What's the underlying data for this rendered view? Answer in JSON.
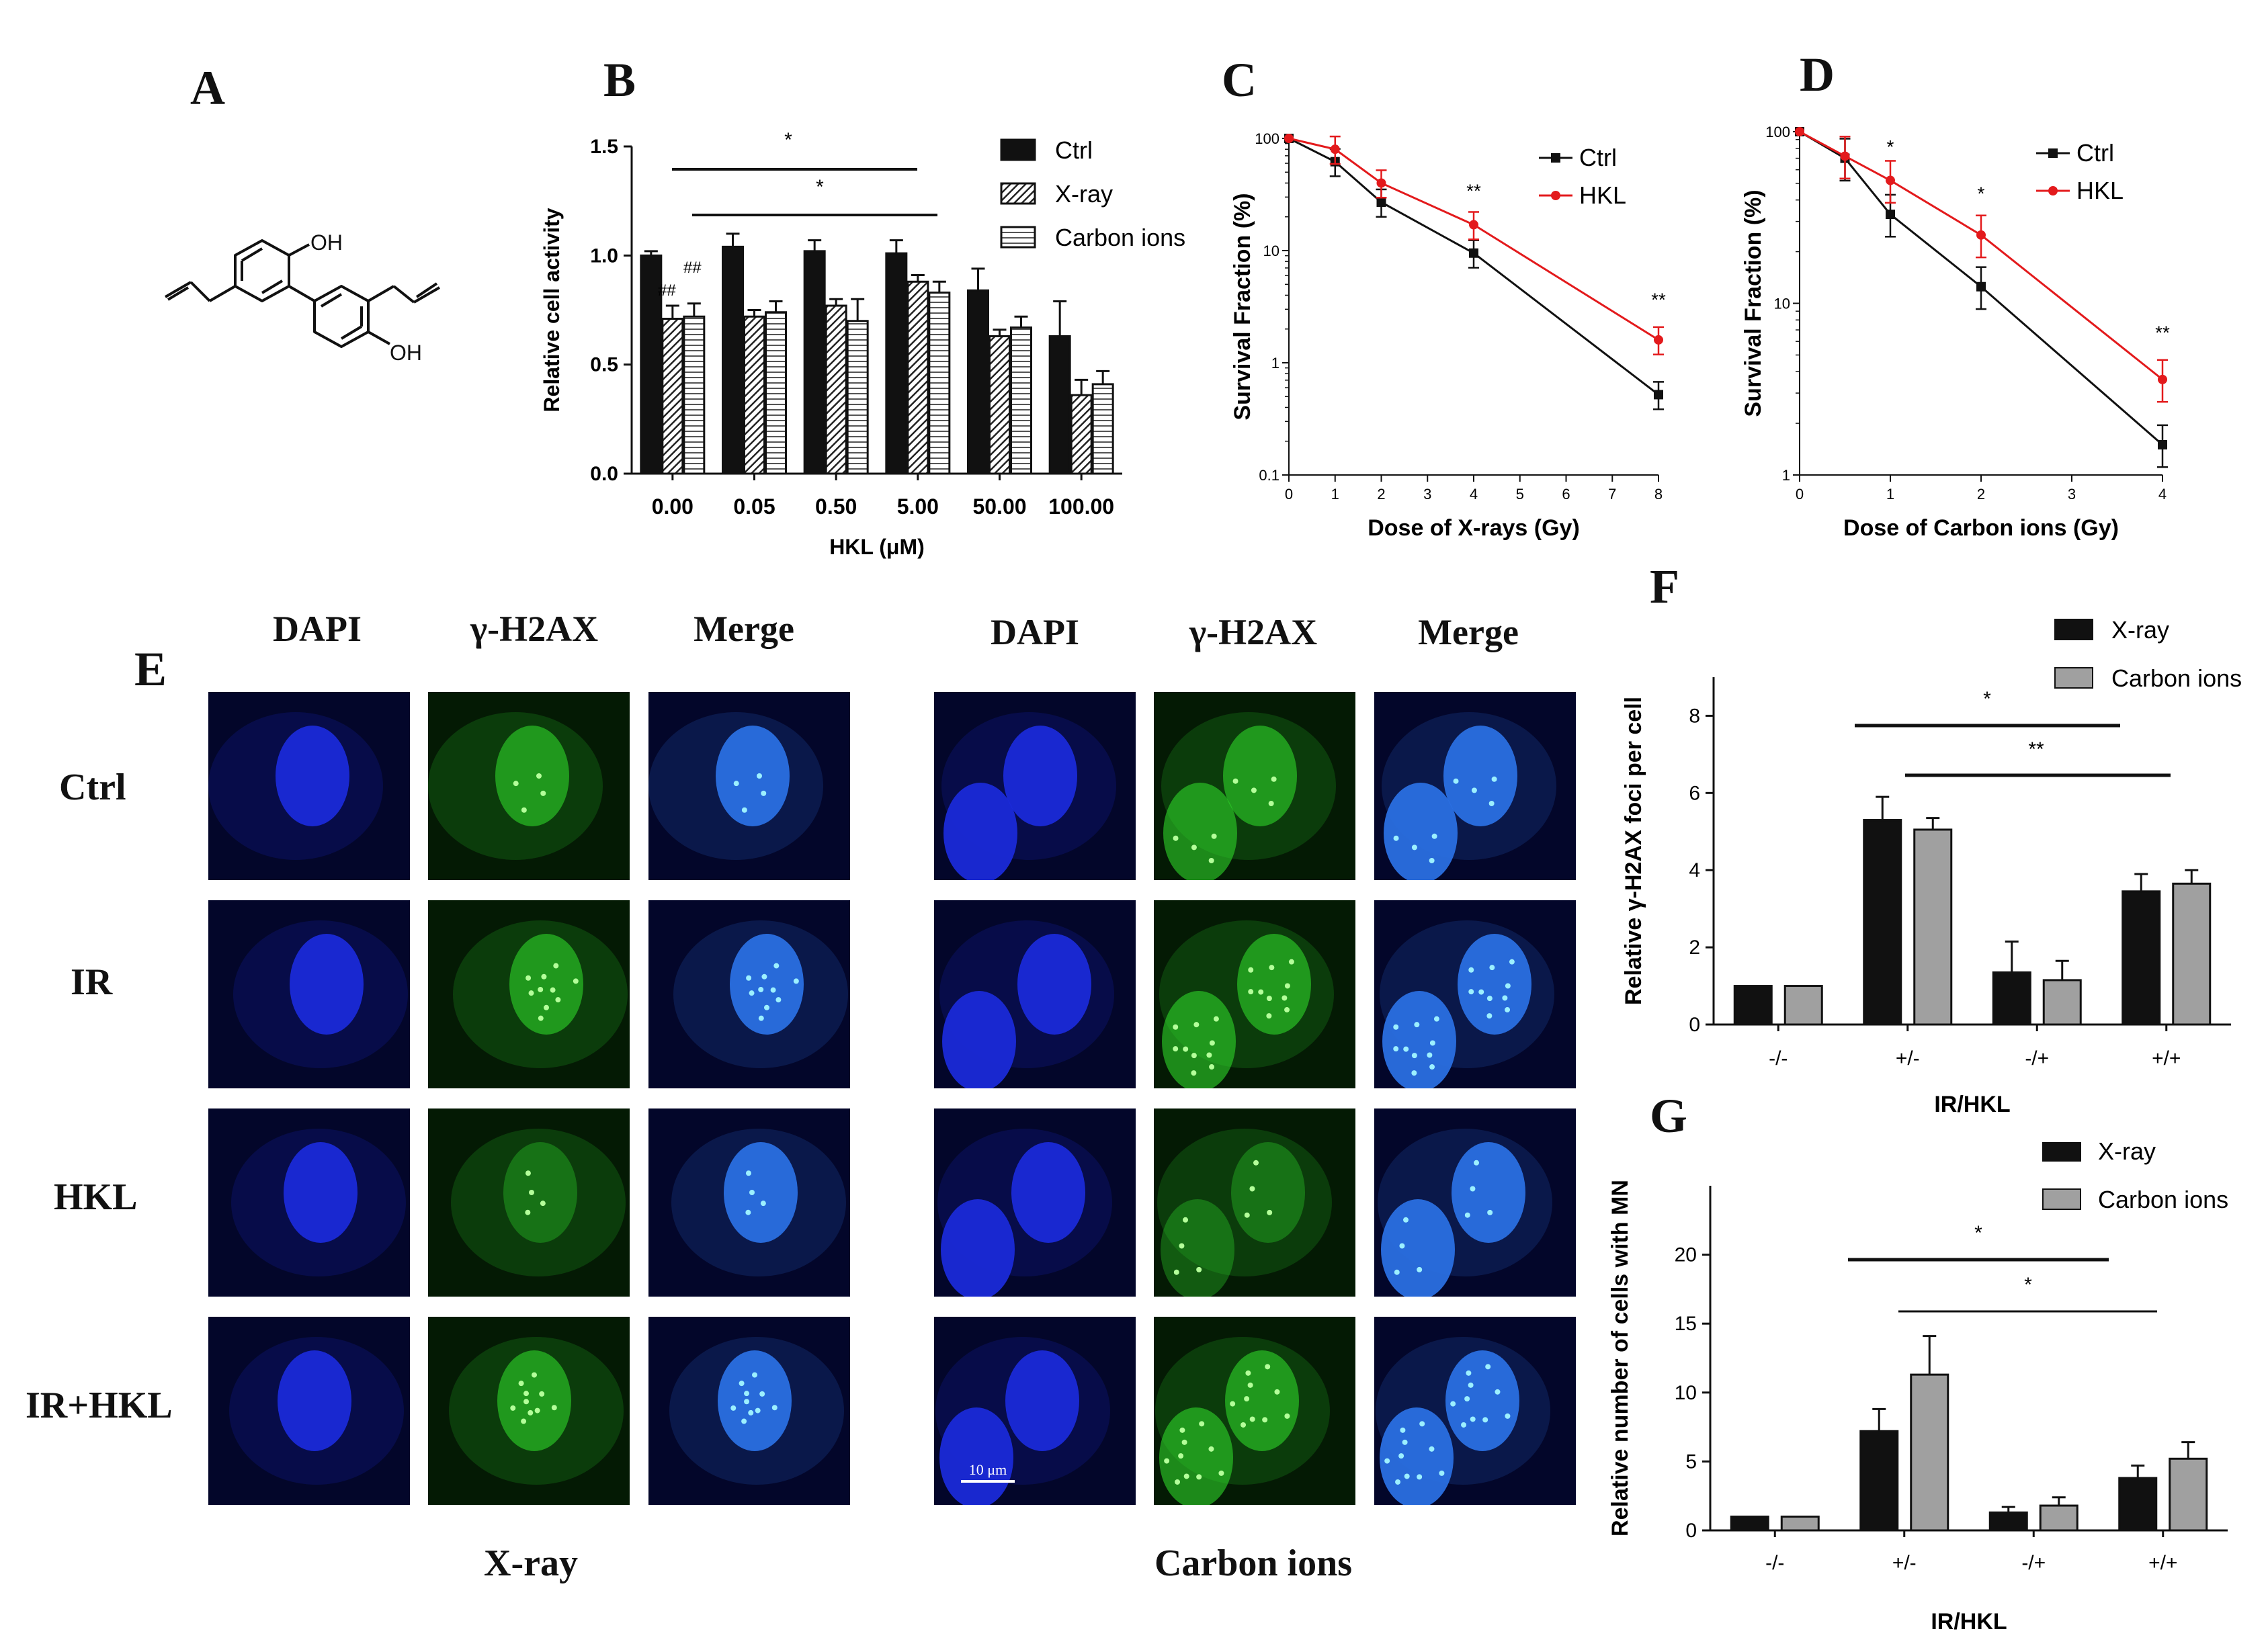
{
  "panels": {
    "A": "A",
    "B": "B",
    "C": "C",
    "D": "D",
    "E": "E",
    "F": "F",
    "G": "G"
  },
  "chem": {
    "oh_top": "OH",
    "oh_bottom": "OH"
  },
  "micrographs": {
    "headers": [
      "DAPI",
      "γ-H2AX",
      "Merge"
    ],
    "rows": [
      "Ctrl",
      "IR",
      "HKL",
      "IR+HKL"
    ],
    "left_caption": "X-ray",
    "right_caption": "Carbon ions",
    "scale_bar": "10 μm",
    "colors": {
      "dapi": "#1a2ad8",
      "gamma": "#2fd62a",
      "merge": "#2a6fe0"
    }
  },
  "chart_data": [
    {
      "panel": "B",
      "type": "bar",
      "xlabel": "HKL (μM)",
      "ylabel": "Relative cell activity",
      "ylim": [
        0,
        1.5
      ],
      "yticks": [
        "0.0",
        "0.5",
        "1.0",
        "1.5"
      ],
      "categories": [
        "0.00",
        "0.05",
        "0.50",
        "5.00",
        "50.00",
        "100.00"
      ],
      "series": [
        {
          "name": "Ctrl",
          "values": [
            1.0,
            1.04,
            1.02,
            1.01,
            0.84,
            0.63
          ],
          "errors": [
            0.02,
            0.06,
            0.05,
            0.06,
            0.1,
            0.16
          ],
          "color": "#111111"
        },
        {
          "name": "X-ray",
          "values": [
            0.71,
            0.72,
            0.77,
            0.88,
            0.63,
            0.36
          ],
          "errors": [
            0.06,
            0.03,
            0.03,
            0.03,
            0.03,
            0.07
          ],
          "color": "#555555"
        },
        {
          "name": "Carbon ions",
          "values": [
            0.72,
            0.74,
            0.7,
            0.83,
            0.67,
            0.41
          ],
          "errors": [
            0.06,
            0.05,
            0.1,
            0.05,
            0.05,
            0.06
          ],
          "color": "#dddddd"
        }
      ],
      "annotations": [
        "*",
        "*",
        "##",
        "##"
      ],
      "legend": "top-right"
    },
    {
      "panel": "C",
      "type": "line",
      "xlabel": "Dose of X-rays (Gy)",
      "ylabel": "Survival Fraction (%)",
      "yscale": "log",
      "ylim": [
        0.1,
        100
      ],
      "yticks": [
        "0.1",
        "1",
        "10",
        "100"
      ],
      "xlim": [
        0,
        8
      ],
      "xticks": [
        "0",
        "1",
        "2",
        "3",
        "4",
        "5",
        "6",
        "7",
        "8"
      ],
      "series": [
        {
          "name": "Ctrl",
          "color": "#111111",
          "x": [
            0,
            1,
            2,
            4,
            8
          ],
          "y": [
            100,
            62,
            27,
            9.5,
            0.52
          ]
        },
        {
          "name": "HKL",
          "color": "#e31a1c",
          "x": [
            0,
            1,
            2,
            4,
            8
          ],
          "y": [
            100,
            80,
            40,
            17,
            1.6
          ]
        }
      ],
      "annotations": [
        "**",
        "**"
      ],
      "legend": "top-right"
    },
    {
      "panel": "D",
      "type": "line",
      "xlabel": "Dose of Carbon ions (Gy)",
      "ylabel": "Survival Fraction (%)",
      "yscale": "log",
      "ylim": [
        1,
        100
      ],
      "yticks": [
        "1",
        "10",
        "100"
      ],
      "xlim": [
        0,
        4
      ],
      "xticks": [
        "0",
        "1",
        "2",
        "3",
        "4"
      ],
      "series": [
        {
          "name": "Ctrl",
          "color": "#111111",
          "x": [
            0,
            0.5,
            1,
            2,
            4
          ],
          "y": [
            100,
            70,
            33,
            12.5,
            1.5
          ]
        },
        {
          "name": "HKL",
          "color": "#e31a1c",
          "x": [
            0,
            0.5,
            1,
            2,
            4
          ],
          "y": [
            100,
            72,
            52,
            25,
            3.6
          ]
        }
      ],
      "annotations": [
        "*",
        "*",
        "**"
      ],
      "legend": "top-right"
    },
    {
      "panel": "F",
      "type": "bar",
      "xlabel": "IR/HKL",
      "ylabel": "Relative γ-H2AX foci per cell",
      "ylim": [
        0,
        9
      ],
      "yticks": [
        "0",
        "2",
        "4",
        "6",
        "8"
      ],
      "categories": [
        "-/-",
        "+/-",
        "-/+",
        "+/+"
      ],
      "series": [
        {
          "name": "X-ray",
          "values": [
            1.0,
            5.3,
            1.35,
            3.45
          ],
          "errors": [
            0,
            0.6,
            0.8,
            0.45
          ],
          "color": "#111111"
        },
        {
          "name": "Carbon ions",
          "values": [
            1.0,
            5.05,
            1.15,
            3.65
          ],
          "errors": [
            0,
            0.3,
            0.5,
            0.35
          ],
          "color": "#a0a0a0"
        }
      ],
      "annotations": [
        "*",
        "**"
      ],
      "legend": "top-right"
    },
    {
      "panel": "G",
      "type": "bar",
      "xlabel": "IR/HKL",
      "ylabel": "Relative number of cells with MN",
      "ylim": [
        0,
        25
      ],
      "yticks": [
        "0",
        "5",
        "10",
        "15",
        "20"
      ],
      "categories": [
        "-/-",
        "+/-",
        "-/+",
        "+/+"
      ],
      "series": [
        {
          "name": "X-ray",
          "values": [
            1.0,
            7.2,
            1.3,
            3.8
          ],
          "errors": [
            0,
            1.6,
            0.4,
            0.9
          ],
          "color": "#111111"
        },
        {
          "name": "Carbon ions",
          "values": [
            1.0,
            11.3,
            1.8,
            5.2
          ],
          "errors": [
            0,
            2.8,
            0.6,
            1.2
          ],
          "color": "#a0a0a0"
        }
      ],
      "annotations": [
        "*",
        "*"
      ],
      "legend": "top-right"
    }
  ]
}
